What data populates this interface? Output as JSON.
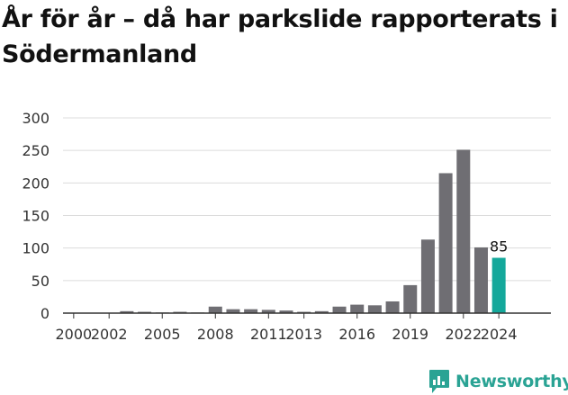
{
  "title": "År för år – då har parkslide rapporterats i Södermanland",
  "logo_text": "Newsworthy",
  "colors": {
    "bar": "#6f6e73",
    "highlight": "#14a89b",
    "grid": "#dcdcdc",
    "axis": "#333333",
    "brand": "#2aa394"
  },
  "icons": {
    "logo": "newsworthy-logo-icon"
  },
  "chart_data": {
    "type": "bar",
    "categories": [
      "2000",
      "2001",
      "2002",
      "2003",
      "2004",
      "2005",
      "2006",
      "2007",
      "2008",
      "2009",
      "2010",
      "2011",
      "2012",
      "2013",
      "2014",
      "2015",
      "2016",
      "2017",
      "2018",
      "2019",
      "2020",
      "2021",
      "2022",
      "2023",
      "2024"
    ],
    "values": [
      0,
      0,
      0,
      3,
      2,
      1,
      2,
      1,
      10,
      6,
      6,
      5,
      4,
      2,
      3,
      10,
      13,
      12,
      18,
      43,
      113,
      215,
      251,
      101,
      85
    ],
    "x_tick_labels": [
      "2000",
      "2002",
      "2005",
      "2008",
      "2011",
      "2013",
      "2016",
      "2019",
      "2022",
      "2024"
    ],
    "y_ticks": [
      0,
      50,
      100,
      150,
      200,
      250,
      300
    ],
    "ylim": [
      0,
      300
    ],
    "highlight_category": "2024",
    "data_labels": [
      {
        "category": "2024",
        "text": "85"
      }
    ],
    "grid": true,
    "xlabel": "",
    "ylabel": ""
  }
}
